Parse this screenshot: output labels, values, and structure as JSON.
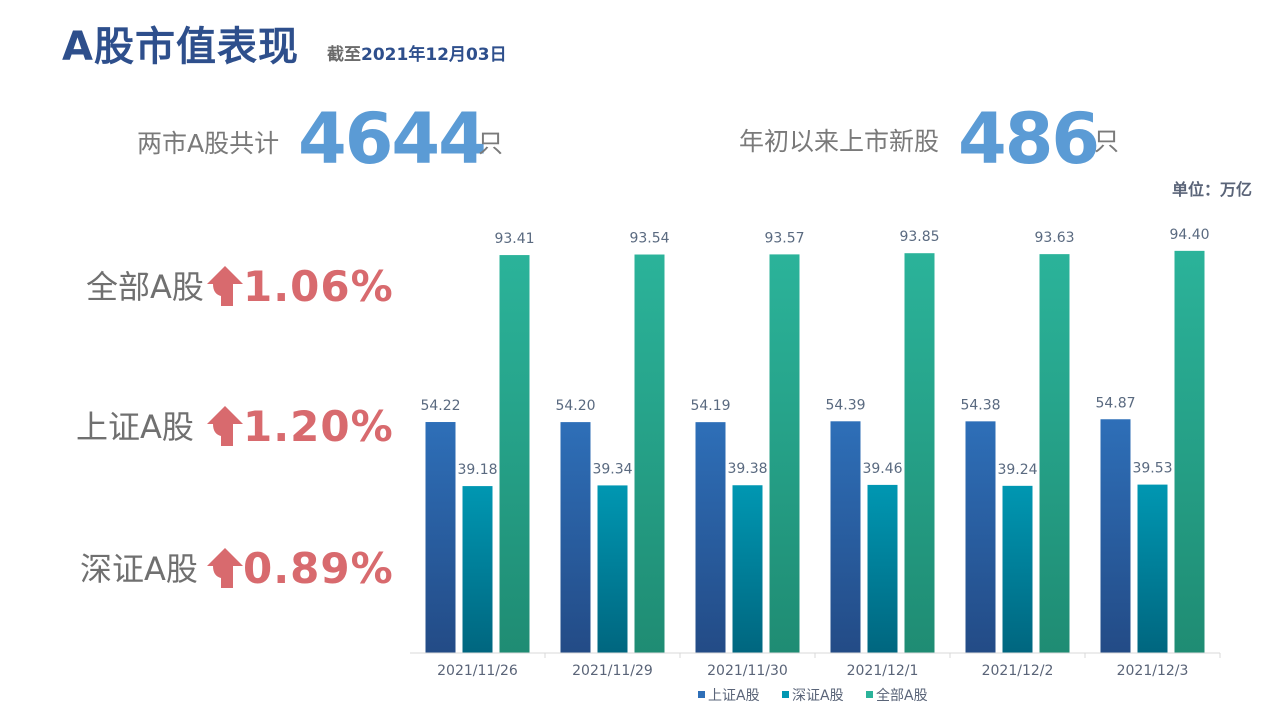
{
  "header": {
    "title": "A股市值表现",
    "date_prefix": "截至",
    "date": "2021年12月03日"
  },
  "stats": {
    "total_label": "两市A股共计",
    "total_value": "4644",
    "total_unit": "只",
    "ipo_label": "年初以来上市新股",
    "ipo_value": "486",
    "ipo_unit": "只"
  },
  "indices": [
    {
      "label": "全部A股",
      "change": "1.06%",
      "direction": "up"
    },
    {
      "label": "上证A股",
      "change": "1.20%",
      "direction": "up"
    },
    {
      "label": "深证A股",
      "change": "0.89%",
      "direction": "up"
    }
  ],
  "colors": {
    "title": "#2e4f8c",
    "stat_number": "#5b9bd5",
    "change_up": "#d86a6e",
    "series_sh": "#2e6fb8",
    "series_sz": "#0097b2",
    "series_all": "#2bb39a"
  },
  "chart_data": {
    "type": "bar",
    "unit_note": "单位：万亿",
    "categories": [
      "2021/11/26",
      "2021/11/29",
      "2021/11/30",
      "2021/12/1",
      "2021/12/2",
      "2021/12/3"
    ],
    "series": [
      {
        "name": "上证A股",
        "values": [
          54.22,
          54.2,
          54.19,
          54.39,
          54.38,
          54.87
        ]
      },
      {
        "name": "深证A股",
        "values": [
          39.18,
          39.34,
          39.38,
          39.46,
          39.24,
          39.53
        ]
      },
      {
        "name": "全部A股",
        "values": [
          93.41,
          93.54,
          93.57,
          93.85,
          93.63,
          94.4
        ]
      }
    ],
    "ylim": [
      0,
      100
    ],
    "grid": false,
    "legend": "bottom"
  }
}
